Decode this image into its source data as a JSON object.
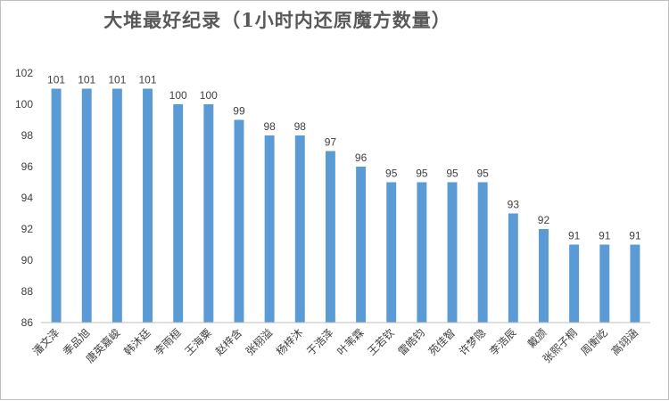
{
  "chart_data": {
    "type": "bar",
    "title": "大堆最好纪录（1小时内还原魔方数量）",
    "categories": [
      "潘文泽",
      "季品旭",
      "唐英嘉峻",
      "韩沐廷",
      "李雨桓",
      "王海粟",
      "赵梓含",
      "张栩溢",
      "杨梓沐",
      "于浩泽",
      "叶苇霖",
      "王若钦",
      "雷皓钧",
      "苑佳智",
      "许梦隐",
      "李浩辰",
      "戴颁",
      "张熙子桐",
      "周衡屹",
      "高翊涵"
    ],
    "values": [
      101,
      101,
      101,
      101,
      100,
      100,
      99,
      98,
      98,
      97,
      96,
      95,
      95,
      95,
      95,
      93,
      92,
      91,
      91,
      91
    ],
    "xlabel": "",
    "ylabel": "",
    "ylim": [
      86,
      102
    ],
    "yticks": [
      86,
      88,
      90,
      92,
      94,
      96,
      98,
      100,
      102
    ],
    "grid": false,
    "legend": "none",
    "bar_color": "#5B9BD5",
    "axis_color": "#BFBFBF"
  }
}
